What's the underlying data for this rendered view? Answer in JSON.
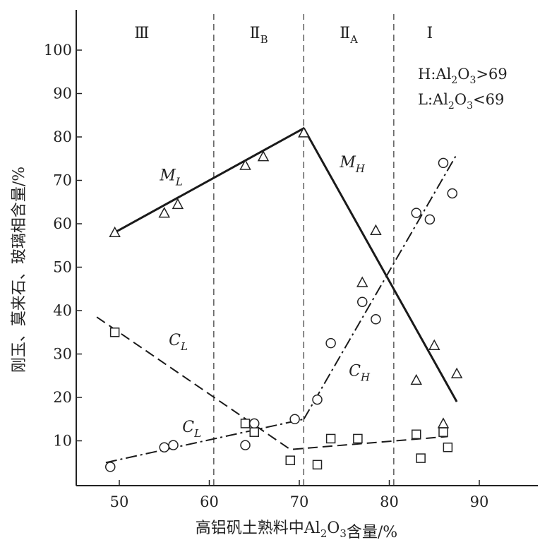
{
  "chart_data": {
    "type": "scatter",
    "xlabel": "高铝矾土熟料中Al2O3含量/%",
    "ylabel": "刚玉、莫来石、玻璃相含量/%",
    "xlim": [
      46,
      97
    ],
    "ylim": [
      0,
      110
    ],
    "x_ticks": [
      50,
      60,
      70,
      80,
      90
    ],
    "y_ticks": [
      10,
      20,
      30,
      40,
      50,
      60,
      70,
      80,
      90,
      100
    ],
    "grid": false,
    "region_boundaries": [
      60.5,
      70.5,
      80.5
    ],
    "regions": [
      {
        "label": "Ⅲ",
        "x_center": 52.5
      },
      {
        "label": "Ⅱ",
        "subscript": "B",
        "x_center": 65.5
      },
      {
        "label": "Ⅱ",
        "subscript": "A",
        "x_center": 75.5
      },
      {
        "label": "Ⅰ",
        "x_center": 84.5
      }
    ],
    "legend": [
      {
        "key": "H",
        "text": "Al2O3>69"
      },
      {
        "key": "L",
        "text": "Al2O3<69"
      }
    ],
    "lines": [
      {
        "label": "M",
        "subscript": "L",
        "style": "solid",
        "points": [
          [
            49.5,
            58
          ],
          [
            70.5,
            82
          ]
        ],
        "label_pos": [
          54.5,
          70
        ]
      },
      {
        "label": "M",
        "subscript": "H",
        "style": "solid",
        "points": [
          [
            70.5,
            82
          ],
          [
            87.5,
            19
          ]
        ],
        "label_pos": [
          74.5,
          73
        ]
      },
      {
        "label": "C",
        "subscript": "L",
        "style": "dashed",
        "points": [
          [
            47.5,
            38.5
          ],
          [
            69,
            8
          ],
          [
            86.5,
            11
          ]
        ],
        "label_pos": [
          55.5,
          32
        ]
      },
      {
        "label": "C",
        "subscript": "L",
        "style": "dashdot",
        "points": [
          [
            48.5,
            5
          ],
          [
            70.5,
            15
          ]
        ],
        "label_pos": [
          57,
          12
        ]
      },
      {
        "label": "C",
        "subscript": "H",
        "style": "dashdot",
        "points": [
          [
            70.5,
            15
          ],
          [
            87.5,
            76
          ]
        ],
        "label_pos": [
          75.5,
          25
        ]
      }
    ],
    "series": [
      {
        "marker": "triangle",
        "points": [
          [
            49.5,
            58
          ],
          [
            55,
            62.5
          ],
          [
            56.5,
            64.5
          ],
          [
            64,
            73.5
          ],
          [
            66,
            75.5
          ],
          [
            70.5,
            81
          ],
          [
            78.5,
            58.5
          ],
          [
            77,
            46.5
          ],
          [
            83,
            24
          ],
          [
            85,
            32
          ],
          [
            86,
            14
          ],
          [
            87.5,
            25.5
          ]
        ]
      },
      {
        "marker": "circle",
        "points": [
          [
            49,
            4
          ],
          [
            55,
            8.5
          ],
          [
            56,
            9
          ],
          [
            64,
            9
          ],
          [
            65,
            14
          ],
          [
            69.5,
            15
          ],
          [
            72,
            19.5
          ],
          [
            73.5,
            32.5
          ],
          [
            77,
            42
          ],
          [
            78.5,
            38
          ],
          [
            83,
            62.5
          ],
          [
            84.5,
            61
          ],
          [
            86,
            74
          ],
          [
            87,
            67
          ]
        ]
      },
      {
        "marker": "square",
        "points": [
          [
            49.5,
            35
          ],
          [
            64,
            14
          ],
          [
            65,
            12
          ],
          [
            69,
            5.5
          ],
          [
            72,
            4.5
          ],
          [
            73.5,
            10.5
          ],
          [
            76.5,
            10.5
          ],
          [
            83,
            11.5
          ],
          [
            83.5,
            6
          ],
          [
            86,
            12
          ],
          [
            86.5,
            8.5
          ]
        ]
      }
    ]
  }
}
